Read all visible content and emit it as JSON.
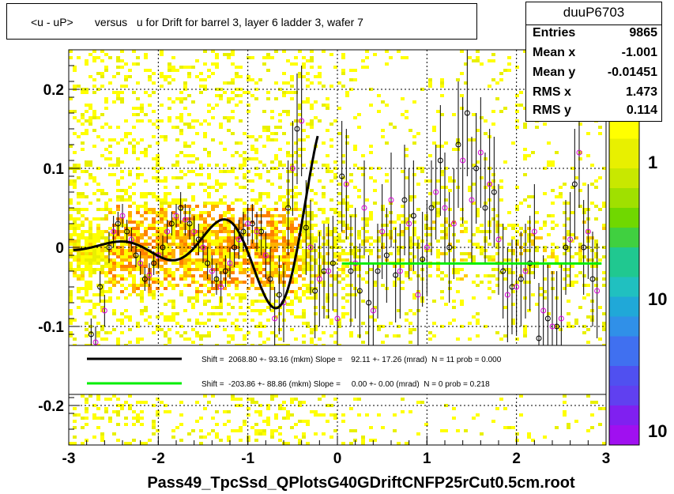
{
  "title": "<u - uP>       versus   u for Drift for barrel 3, layer 6 ladder 3, wafer 7",
  "stats": {
    "name": "duuP6703",
    "rows": [
      {
        "label": "Entries",
        "value": "9865"
      },
      {
        "label": "Mean x",
        "value": "-1.001"
      },
      {
        "label": "Mean y",
        "value": "-0.01451"
      },
      {
        "label": "RMS x",
        "value": "1.473"
      },
      {
        "label": "RMS y",
        "value": "0.114"
      }
    ]
  },
  "chart_data": {
    "type": "scatter",
    "title": "<u - uP>       versus   u for Drift for barrel 3, layer 6 ladder 3, wafer 7",
    "xlabel": "Pass49_TpcSsd_QPlotsG40GDriftCNFP25rCut0.5cm.root",
    "ylabel": "",
    "xlim": [
      -3,
      3
    ],
    "ylim": [
      -0.25,
      0.25
    ],
    "xticks": [
      "-3",
      "-2",
      "-1",
      "0",
      "1",
      "2",
      "3"
    ],
    "yticks": [
      "-0.2",
      "-0.1",
      "0",
      "0.1",
      "0.2"
    ],
    "colorbar_ticks": [
      "1",
      "10",
      "10"
    ],
    "grid": true,
    "legend_position": "bottom",
    "legend": [
      {
        "text": "Shift =  2068.80 +- 93.16 (mkm) Slope =    92.11 +- 17.26 (mrad)  N = 11 prob = 0.000",
        "color": "#000000"
      },
      {
        "text": "Shift =  -203.86 +- 88.86 (mkm) Slope =     0.00 +- 0.00 (mrad)  N = 0 prob = 0.218",
        "color": "#00ee00"
      }
    ],
    "series": [
      {
        "style": "profile-black",
        "x": [
          -2.75,
          -2.65,
          -2.55,
          -2.45,
          -2.35,
          -2.25,
          -2.15,
          -2.05,
          -1.95,
          -1.85,
          -1.75,
          -1.65,
          -1.55,
          -1.45,
          -1.35,
          -1.25,
          -1.15,
          -1.05,
          -0.95,
          -0.85,
          -0.75,
          -0.65,
          -0.55,
          -0.45,
          -0.35,
          -0.25,
          -0.15,
          -0.05,
          0.05,
          0.15,
          0.25,
          0.35,
          0.45,
          0.55,
          0.65,
          0.75,
          0.85,
          0.95,
          1.05,
          1.15,
          1.25,
          1.35,
          1.45,
          1.55,
          1.65,
          1.75,
          1.85,
          1.95,
          2.05,
          2.15,
          2.25,
          2.35,
          2.45,
          2.55,
          2.65,
          2.75,
          2.85
        ],
        "y": [
          -0.11,
          -0.05,
          0.0,
          0.03,
          0.02,
          -0.01,
          -0.04,
          -0.02,
          0.0,
          0.03,
          0.05,
          0.03,
          0.01,
          -0.02,
          -0.04,
          -0.03,
          0.0,
          0.02,
          0.03,
          0.02,
          -0.04,
          -0.06,
          0.05,
          0.15,
          0.025,
          -0.055,
          -0.03,
          -0.02,
          0.09,
          -0.03,
          -0.055,
          -0.07,
          -0.03,
          -0.01,
          -0.035,
          0.06,
          0.04,
          -0.015,
          0.05,
          0.11,
          0.0,
          0.13,
          0.17,
          0.1,
          0.05,
          0.07,
          -0.03,
          -0.05,
          -0.04,
          -0.02,
          -0.115,
          -0.09,
          -0.1,
          0.0,
          0.08,
          0.0,
          -0.04
        ],
        "err": [
          0.02,
          0.02,
          0.02,
          0.015,
          0.015,
          0.015,
          0.015,
          0.015,
          0.015,
          0.015,
          0.02,
          0.02,
          0.02,
          0.02,
          0.02,
          0.02,
          0.025,
          0.025,
          0.025,
          0.03,
          0.04,
          0.05,
          0.06,
          0.07,
          0.06,
          0.06,
          0.06,
          0.06,
          0.07,
          0.07,
          0.06,
          0.06,
          0.06,
          0.06,
          0.06,
          0.07,
          0.07,
          0.06,
          0.06,
          0.07,
          0.07,
          0.08,
          0.08,
          0.07,
          0.07,
          0.07,
          0.06,
          0.06,
          0.06,
          0.06,
          0.07,
          0.07,
          0.07,
          0.06,
          0.07,
          0.06,
          0.06
        ]
      },
      {
        "style": "profile-magenta",
        "x": [
          -2.7,
          -2.6,
          -2.5,
          -2.4,
          -2.3,
          -2.2,
          -2.1,
          -2.0,
          -1.9,
          -1.8,
          -1.7,
          -1.6,
          -1.5,
          -1.4,
          -1.3,
          -1.2,
          -1.1,
          -1.0,
          -0.9,
          -0.8,
          -0.7,
          -0.6,
          -0.5,
          -0.4,
          -0.3,
          -0.2,
          -0.1,
          0.0,
          0.1,
          0.2,
          0.3,
          0.4,
          0.5,
          0.6,
          0.7,
          0.8,
          0.9,
          1.0,
          1.1,
          1.2,
          1.3,
          1.4,
          1.5,
          1.6,
          1.7,
          1.8,
          1.9,
          2.0,
          2.1,
          2.2,
          2.3,
          2.4,
          2.5,
          2.6,
          2.7,
          2.8,
          2.9
        ],
        "y": [
          -0.12,
          -0.08,
          0.02,
          0.04,
          0.01,
          -0.02,
          -0.035,
          -0.01,
          0.02,
          0.04,
          0.035,
          0.02,
          0.0,
          -0.03,
          -0.05,
          -0.02,
          0.01,
          0.03,
          0.02,
          -0.01,
          -0.09,
          -0.07,
          0.1,
          0.16,
          0.0,
          -0.04,
          -0.03,
          -0.09,
          0.08,
          -0.02,
          0.05,
          -0.08,
          0.02,
          0.06,
          -0.03,
          0.03,
          -0.06,
          0.0,
          0.07,
          0.05,
          0.03,
          0.11,
          0.06,
          0.12,
          0.08,
          0.01,
          -0.06,
          -0.05,
          -0.03,
          0.02,
          -0.08,
          -0.1,
          -0.09,
          0.01,
          0.12,
          0.02,
          -0.055
        ],
        "err": [
          0.02,
          0.02,
          0.02,
          0.015,
          0.015,
          0.015,
          0.015,
          0.015,
          0.015,
          0.015,
          0.02,
          0.02,
          0.02,
          0.02,
          0.02,
          0.02,
          0.025,
          0.025,
          0.025,
          0.03,
          0.04,
          0.05,
          0.06,
          0.07,
          0.06,
          0.06,
          0.06,
          0.06,
          0.07,
          0.07,
          0.06,
          0.06,
          0.06,
          0.06,
          0.06,
          0.07,
          0.07,
          0.06,
          0.06,
          0.07,
          0.07,
          0.08,
          0.08,
          0.07,
          0.07,
          0.07,
          0.06,
          0.06,
          0.06,
          0.06,
          0.07,
          0.07,
          0.07,
          0.06,
          0.07,
          0.06,
          0.06
        ]
      }
    ],
    "fits": [
      {
        "style": "polynomial-black",
        "x_range": [
          -2.95,
          -0.22
        ]
      },
      {
        "style": "constant-green",
        "x_range": [
          0.05,
          2.95
        ],
        "y": -0.0204
      }
    ]
  }
}
